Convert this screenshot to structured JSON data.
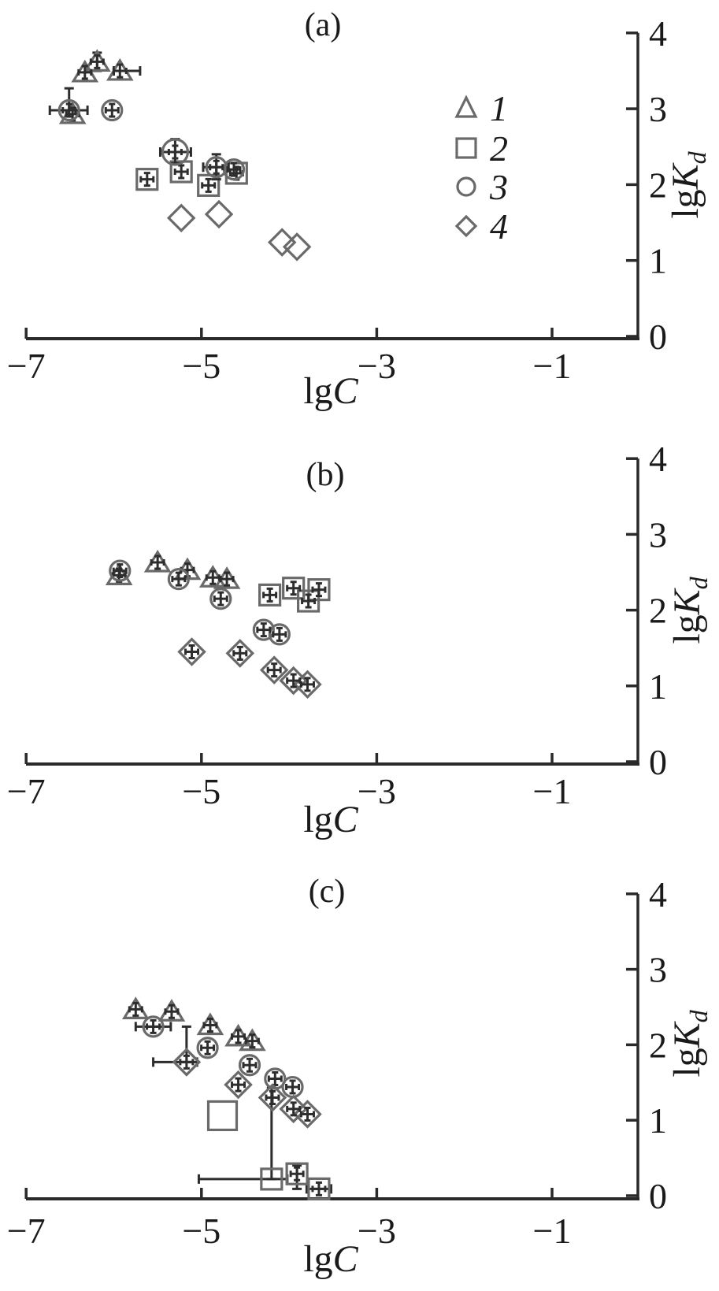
{
  "figure": {
    "background": "#ffffff",
    "axis_color": "#2a2a2a",
    "marker_color": "#6a6a6a",
    "cross_color": "#2d2d2d",
    "x_axis": {
      "label_prefix": "lg",
      "label_var": "C",
      "range": [
        -7.3,
        0
      ],
      "ticks": [
        {
          "v": -7,
          "label": "−7"
        },
        {
          "v": -5,
          "label": "−5"
        },
        {
          "v": -3,
          "label": "−3"
        },
        {
          "v": -1,
          "label": "−1"
        }
      ]
    },
    "y_axis": {
      "label_prefix": "lg",
      "label_var": "K",
      "label_sub": "d",
      "range": [
        0,
        4
      ],
      "ticks": [
        {
          "v": 0,
          "label": "0"
        },
        {
          "v": 1,
          "label": "1"
        },
        {
          "v": 2,
          "label": "2"
        },
        {
          "v": 3,
          "label": "3"
        },
        {
          "v": 4,
          "label": "4"
        }
      ]
    },
    "legend": {
      "position": "panel-a-right",
      "entries": [
        {
          "marker": "triangle",
          "label": "1"
        },
        {
          "marker": "square",
          "label": "2"
        },
        {
          "marker": "circle",
          "label": "3"
        },
        {
          "marker": "diamond",
          "label": "4"
        }
      ]
    }
  },
  "chart_data": [
    {
      "type": "scatter",
      "panel": "a",
      "title": "(a)",
      "xlabel": "lgC",
      "ylabel": "lgKd",
      "xlim": [
        -7.3,
        0
      ],
      "ylim": [
        0,
        4
      ],
      "grid": false,
      "series": [
        {
          "name": "1",
          "marker": "triangle",
          "points": [
            {
              "x": -6.33,
              "y": 3.48,
              "cross": true
            },
            {
              "x": -6.19,
              "y": 3.62,
              "cross": true,
              "ey": [
                3.5,
                3.74
              ]
            },
            {
              "x": -5.93,
              "y": 3.5,
              "cross": true,
              "ex": [
                -6.0,
                -5.7
              ]
            },
            {
              "x": -6.47,
              "y": 2.93,
              "cross": true
            }
          ]
        },
        {
          "name": "2",
          "marker": "square",
          "points": [
            {
              "x": -5.62,
              "y": 2.07,
              "cross": true
            },
            {
              "x": -5.23,
              "y": 2.17,
              "cross": true
            },
            {
              "x": -4.92,
              "y": 1.99,
              "cross": true
            },
            {
              "x": -4.6,
              "y": 2.15,
              "cross": true
            }
          ]
        },
        {
          "name": "3",
          "marker": "circle",
          "points": [
            {
              "x": -6.51,
              "y": 2.98,
              "cross": true,
              "ex": [
                -6.73,
                -6.3
              ],
              "ey": [
                2.98,
                3.27
              ]
            },
            {
              "x": -6.02,
              "y": 2.98,
              "cross": true
            },
            {
              "x": -5.3,
              "y": 2.43,
              "cross": true,
              "r": 16,
              "ex": [
                -5.47,
                -5.12
              ],
              "ey": [
                2.28,
                2.6
              ]
            },
            {
              "x": -4.83,
              "y": 2.23,
              "cross": true,
              "ex": [
                -4.98,
                -4.69
              ],
              "ey": [
                2.07,
                2.4
              ]
            },
            {
              "x": -4.63,
              "y": 2.2,
              "cross": true
            }
          ]
        },
        {
          "name": "4",
          "marker": "diamond",
          "points": [
            {
              "x": -5.23,
              "y": 1.56,
              "cross": false
            },
            {
              "x": -4.8,
              "y": 1.61,
              "cross": false
            },
            {
              "x": -4.08,
              "y": 1.24,
              "cross": false
            },
            {
              "x": -3.91,
              "y": 1.18,
              "cross": false
            }
          ]
        }
      ]
    },
    {
      "type": "scatter",
      "panel": "b",
      "title": "(b)",
      "xlabel": "lgC",
      "ylabel": "lgKd",
      "xlim": [
        -7.3,
        0
      ],
      "ylim": [
        0,
        4
      ],
      "grid": false,
      "series": [
        {
          "name": "1",
          "marker": "triangle",
          "points": [
            {
              "x": -5.94,
              "y": 2.46,
              "cross": true
            },
            {
              "x": -5.5,
              "y": 2.63,
              "cross": true
            },
            {
              "x": -5.16,
              "y": 2.53,
              "cross": true
            },
            {
              "x": -4.87,
              "y": 2.43,
              "cross": true
            },
            {
              "x": -4.71,
              "y": 2.41,
              "cross": true
            }
          ]
        },
        {
          "name": "2",
          "marker": "square",
          "points": [
            {
              "x": -4.22,
              "y": 2.2,
              "cross": true
            },
            {
              "x": -3.95,
              "y": 2.29,
              "cross": true
            },
            {
              "x": -3.78,
              "y": 2.12,
              "cross": true
            },
            {
              "x": -3.66,
              "y": 2.27,
              "cross": true
            }
          ]
        },
        {
          "name": "3",
          "marker": "circle",
          "points": [
            {
              "x": -5.93,
              "y": 2.52,
              "cross": true
            },
            {
              "x": -5.26,
              "y": 2.41,
              "cross": true
            },
            {
              "x": -4.78,
              "y": 2.15,
              "cross": true
            },
            {
              "x": -4.29,
              "y": 1.74,
              "cross": true
            },
            {
              "x": -4.11,
              "y": 1.68,
              "cross": true
            }
          ]
        },
        {
          "name": "4",
          "marker": "diamond",
          "points": [
            {
              "x": -5.11,
              "y": 1.45,
              "cross": true
            },
            {
              "x": -4.56,
              "y": 1.43,
              "cross": true
            },
            {
              "x": -4.17,
              "y": 1.21,
              "cross": true
            },
            {
              "x": -3.95,
              "y": 1.07,
              "cross": true
            },
            {
              "x": -3.79,
              "y": 1.02,
              "cross": true
            }
          ]
        }
      ]
    },
    {
      "type": "scatter",
      "panel": "c",
      "title": "(c)",
      "xlabel": "lgC",
      "ylabel": "lgKd",
      "xlim": [
        -7.3,
        0
      ],
      "ylim": [
        0,
        4
      ],
      "grid": false,
      "series": [
        {
          "name": "1",
          "marker": "triangle",
          "points": [
            {
              "x": -5.75,
              "y": 2.47,
              "cross": true
            },
            {
              "x": -5.34,
              "y": 2.44,
              "cross": true
            },
            {
              "x": -4.9,
              "y": 2.26,
              "cross": true
            },
            {
              "x": -4.58,
              "y": 2.11,
              "cross": true
            },
            {
              "x": -4.42,
              "y": 2.05,
              "cross": true
            }
          ]
        },
        {
          "name": "2",
          "marker": "square",
          "points": [
            {
              "x": -4.76,
              "y": 1.06,
              "cross": false,
              "size": 36
            },
            {
              "x": -4.2,
              "y": 0.22,
              "cross": false,
              "ex": [
                -5.03,
                -4.02
              ],
              "ey": [
                0.22,
                1.43
              ]
            },
            {
              "x": -3.91,
              "y": 0.29,
              "cross": true,
              "ey": [
                0.09,
                0.4
              ]
            },
            {
              "x": -3.66,
              "y": 0.09,
              "cross": true,
              "ex": [
                -3.8,
                -3.52
              ]
            }
          ]
        },
        {
          "name": "3",
          "marker": "circle",
          "points": [
            {
              "x": -5.55,
              "y": 2.24,
              "cross": true,
              "ex": [
                -5.75,
                -5.35
              ]
            },
            {
              "x": -4.93,
              "y": 1.96,
              "cross": true
            },
            {
              "x": -4.45,
              "y": 1.73,
              "cross": true
            },
            {
              "x": -4.16,
              "y": 1.55,
              "cross": true
            },
            {
              "x": -3.96,
              "y": 1.44,
              "cross": true
            }
          ]
        },
        {
          "name": "4",
          "marker": "diamond",
          "points": [
            {
              "x": -5.17,
              "y": 1.77,
              "cross": true,
              "ex": [
                -5.55,
                -5.05
              ],
              "ey": [
                1.77,
                2.24
              ]
            },
            {
              "x": -4.58,
              "y": 1.47,
              "cross": true
            },
            {
              "x": -4.19,
              "y": 1.3,
              "cross": true
            },
            {
              "x": -3.95,
              "y": 1.15,
              "cross": true
            },
            {
              "x": -3.79,
              "y": 1.08,
              "cross": true
            }
          ]
        }
      ]
    }
  ]
}
